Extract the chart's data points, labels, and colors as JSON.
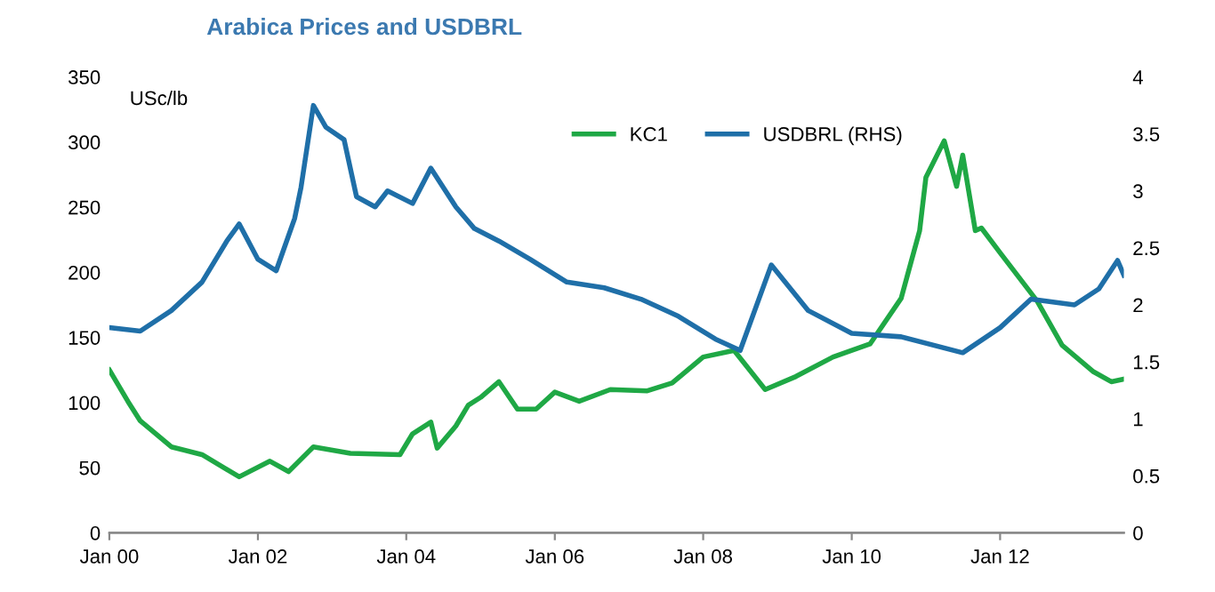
{
  "chart_data": {
    "type": "line",
    "title": "Arabica Prices and USDBRL",
    "ylabel": "USc/lb",
    "xlim": [
      "2000-01",
      "2013-09"
    ],
    "xticks": [
      {
        "value": "2000-01",
        "label": "Jan 00"
      },
      {
        "value": "2002-01",
        "label": "Jan 02"
      },
      {
        "value": "2004-01",
        "label": "Jan 04"
      },
      {
        "value": "2006-01",
        "label": "Jan 06"
      },
      {
        "value": "2008-01",
        "label": "Jan 08"
      },
      {
        "value": "2010-01",
        "label": "Jan 10"
      },
      {
        "value": "2012-01",
        "label": "Jan 12"
      }
    ],
    "ylim": [
      0,
      350
    ],
    "yticks": [
      0,
      50,
      100,
      150,
      200,
      250,
      300,
      350
    ],
    "y2lim": [
      0,
      4
    ],
    "y2ticks": [
      0,
      0.5,
      1,
      1.5,
      2,
      2.5,
      3,
      3.5,
      4
    ],
    "legend": "top",
    "grid": false,
    "series": [
      {
        "name": "KC1",
        "color": "#1fa845",
        "x": [
          "2000-01",
          "2000-04",
          "2000-06",
          "2000-11",
          "2001-04",
          "2001-10",
          "2002-03",
          "2002-06",
          "2002-10",
          "2003-04",
          "2003-12",
          "2004-02",
          "2004-05",
          "2004-06",
          "2004-09",
          "2004-11",
          "2005-01",
          "2005-04",
          "2005-07",
          "2005-10",
          "2006-01",
          "2006-05",
          "2006-10",
          "2007-04",
          "2007-08",
          "2008-01",
          "2008-06",
          "2008-11",
          "2009-04",
          "2009-10",
          "2010-04",
          "2010-09",
          "2010-12",
          "2011-01",
          "2011-04",
          "2011-06",
          "2011-07",
          "2011-09",
          "2011-10",
          "2012-01",
          "2012-07",
          "2012-11",
          "2013-04",
          "2013-07",
          "2013-09"
        ],
        "values": [
          125,
          101,
          86,
          66,
          60,
          43,
          55,
          47,
          66,
          61,
          60,
          76,
          85,
          65,
          82,
          98,
          104,
          116,
          95,
          95,
          108,
          101,
          110,
          109,
          115,
          135,
          140,
          110,
          120,
          135,
          145,
          180,
          232,
          273,
          301,
          266,
          290,
          232,
          234,
          215,
          178,
          144,
          124,
          116,
          118
        ]
      },
      {
        "name": "USDBRL (RHS)",
        "color": "#1f6fa8",
        "axis": "y2",
        "x": [
          "2000-01",
          "2000-06",
          "2000-11",
          "2001-04",
          "2001-08",
          "2001-10",
          "2002-01",
          "2002-04",
          "2002-07",
          "2002-08",
          "2002-10",
          "2002-12",
          "2003-03",
          "2003-05",
          "2003-08",
          "2003-10",
          "2004-02",
          "2004-05",
          "2004-09",
          "2004-12",
          "2005-04",
          "2005-09",
          "2006-03",
          "2006-09",
          "2007-03",
          "2007-09",
          "2008-03",
          "2008-07",
          "2008-12",
          "2009-06",
          "2010-01",
          "2010-09",
          "2011-07",
          "2012-01",
          "2012-06",
          "2013-01",
          "2013-05",
          "2013-08",
          "2013-09"
        ],
        "values": [
          1.8,
          1.77,
          1.95,
          2.2,
          2.56,
          2.71,
          2.4,
          2.3,
          2.76,
          3.03,
          3.75,
          3.56,
          3.45,
          2.95,
          2.86,
          3.0,
          2.89,
          3.2,
          2.86,
          2.67,
          2.56,
          2.4,
          2.2,
          2.15,
          2.05,
          1.9,
          1.7,
          1.6,
          2.35,
          1.95,
          1.75,
          1.72,
          1.58,
          1.8,
          2.05,
          2.0,
          2.14,
          2.39,
          2.26
        ]
      }
    ]
  }
}
